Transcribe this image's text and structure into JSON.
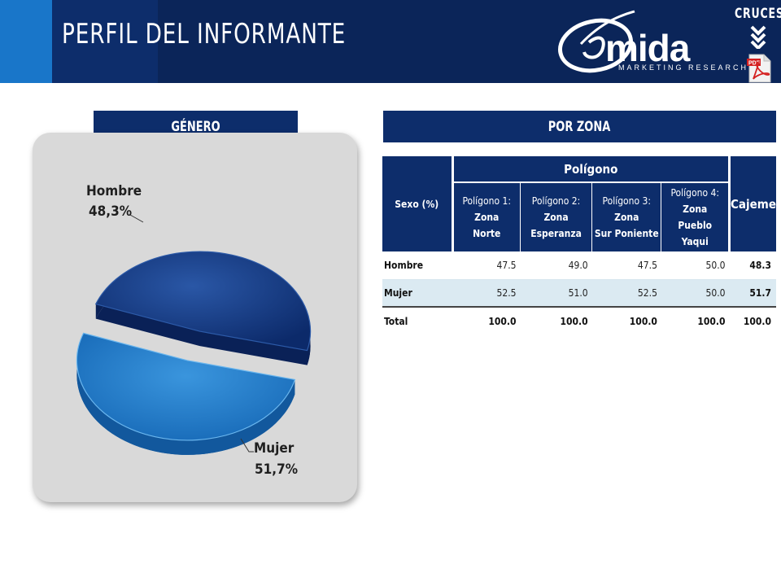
{
  "header": {
    "title": "PERFIL DEL INFORMANTE",
    "logo_word": "mida",
    "logo_tagline": "MARKETING RESEARCH",
    "nav_label": "CRUCES",
    "pdf_icon_label": "PDF"
  },
  "sections": {
    "genero": "GÉNERO",
    "zona": "POR ZONA"
  },
  "chart_data": {
    "type": "pie",
    "title": "GÉNERO",
    "categories": [
      "Hombre",
      "Mujer"
    ],
    "values": [
      48.3,
      51.7
    ],
    "value_labels": [
      "48,3%",
      "51,7%"
    ],
    "colors": [
      "#0e2f78",
      "#1f7fcf"
    ],
    "style": "3d-exploded"
  },
  "table": {
    "row_header": "Sexo (%)",
    "group_header": "Polígono",
    "last_col_header": "Cajeme",
    "columns": [
      {
        "prefix": "Polígono 1:",
        "bold": "Zona",
        "line2": "Norte"
      },
      {
        "prefix": "Polígono 2:",
        "bold": "Zona",
        "line2": "Esperanza"
      },
      {
        "prefix": "Polígono 3:",
        "bold": "Zona",
        "line2": "Sur Poniente"
      },
      {
        "prefix": "Polígono 4:",
        "bold": "Zona",
        "line2": "Pueblo Yaqui"
      }
    ],
    "rows": [
      {
        "label": "Hombre",
        "values": [
          "47.5",
          "49.0",
          "47.5",
          "50.0"
        ],
        "cajeme": "48.3"
      },
      {
        "label": "Mujer",
        "values": [
          "52.5",
          "51.0",
          "52.5",
          "50.0"
        ],
        "cajeme": "51.7"
      },
      {
        "label": "Total",
        "values": [
          "100.0",
          "100.0",
          "100.0",
          "100.0"
        ],
        "cajeme": "100.0"
      }
    ]
  }
}
